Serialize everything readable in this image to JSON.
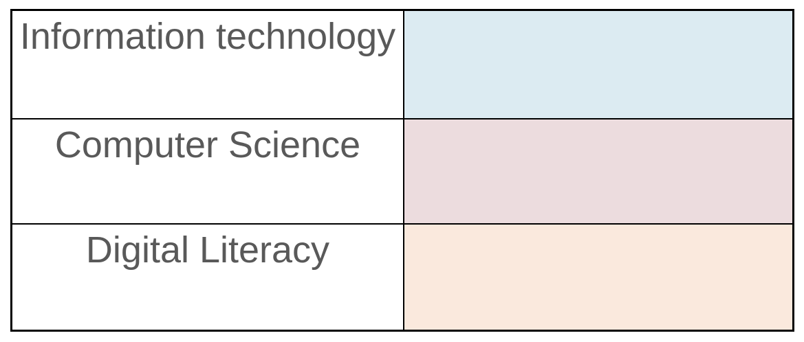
{
  "table": {
    "border_color": "#000000",
    "text_color": "#595959",
    "rows": [
      {
        "label": "Information technology",
        "fill": "#dcebf2"
      },
      {
        "label": "Computer Science",
        "fill": "#ecdcde"
      },
      {
        "label": "Digital Literacy",
        "fill": "#fae9dd"
      }
    ]
  }
}
